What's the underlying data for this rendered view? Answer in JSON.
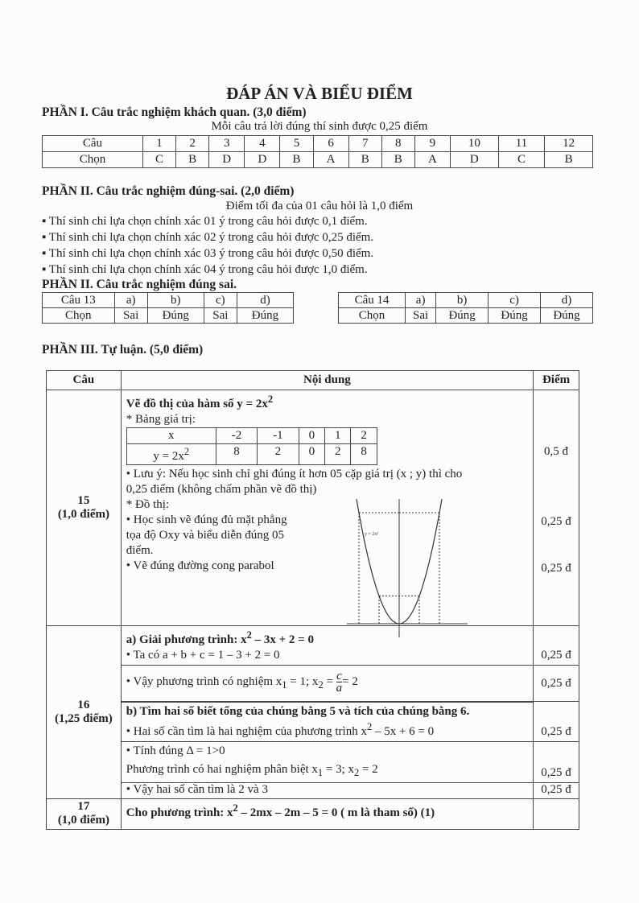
{
  "title": "ĐÁP ÁN VÀ BIỂU ĐIỂM",
  "part1": {
    "heading": "PHẦN I. Câu trắc nghiệm khách quan. (3,0 điểm)",
    "note": "Mỗi câu trả lời đúng thí sinh được 0,25 điểm",
    "row_labels": [
      "Câu",
      "Chọn"
    ],
    "questions": [
      "1",
      "2",
      "3",
      "4",
      "5",
      "6",
      "7",
      "8",
      "9",
      "10",
      "11",
      "12"
    ],
    "answers": [
      "C",
      "B",
      "D",
      "D",
      "B",
      "A",
      "B",
      "B",
      "A",
      "D",
      "C",
      "B"
    ]
  },
  "part2": {
    "heading": "PHẦN II. Câu trắc nghiệm đúng-sai. (2,0 điểm)",
    "note": "Điểm tối đa của 01 câu hỏi là  1,0 điểm",
    "rules": [
      "▪ Thí sinh chỉ lựa chọn chính xác 01 ý trong câu hỏi được 0,1 điểm.",
      "▪ Thí sinh chỉ lựa chọn chính xác 02 ý trong câu hỏi được 0,25 điểm.",
      "▪ Thí sinh chỉ lựa chọn chính xác 03 ý trong câu hỏi được 0,50 điểm.",
      "▪ Thí sinh chỉ lựa chọn chính xác 04 ý trong câu hỏi được 1,0 điểm."
    ],
    "heading2": "PHẦN II. Câu trắc nghiệm đúng sai.",
    "tables": [
      {
        "question": "Câu 13",
        "choose": "Chọn",
        "items": [
          "a)",
          "b)",
          "c)",
          "d)"
        ],
        "answers": [
          "Sai",
          "Đúng",
          "Sai",
          "Đúng"
        ]
      },
      {
        "question": "Câu 14",
        "choose": "Chọn",
        "items": [
          "a)",
          "b)",
          "c)",
          "d)"
        ],
        "answers": [
          "Sai",
          "Đúng",
          "Đúng",
          "Đúng"
        ]
      }
    ]
  },
  "part3": {
    "heading": "PHẦN III. Tự luận. (5,0 điểm)",
    "headers": [
      "Câu",
      "Nội dung",
      "Điểm"
    ],
    "q15": {
      "num": "15",
      "pts": "(1,0 điểm)",
      "title": "Vẽ đồ thị của hàm số y = 2x",
      "table_label": "* Bảng giá trị:",
      "x_label": "x",
      "y_label": "y = 2x",
      "x_values": [
        "-2",
        "-1",
        "0",
        "1",
        "2"
      ],
      "y_values": [
        "8",
        "2",
        "0",
        "2",
        "8"
      ],
      "note1": "• Lưu ý: Nếu học sinh chỉ ghi đúng ít hơn 05 cặp giá trị (x ; y) thì cho",
      "note2": "0,25 điểm (không chấm phần vẽ đồ thị)",
      "graph_label": "* Đồ thị:",
      "b1": "• Học sinh vẽ đúng đủ mặt phẳng tọa độ Oxy và biểu diễn đúng 05 điểm.",
      "b2": "• Vẽ đúng đường cong parabol",
      "graph_fn_label": "y = 2x²",
      "scores": [
        "0,5 đ",
        "0,25 đ",
        "0,25 đ"
      ]
    },
    "q16": {
      "num": "16",
      "pts": "(1,25 điểm)",
      "a_title": "a) Giải phương trình: x",
      "a_title_rest": " – 3x + 2 = 0",
      "a1": "• Ta có a + b + c = 1 – 3 + 2 = 0",
      "a2_pre": "• Vậy phương trình có nghiệm x",
      "a2_mid": " = 1; x",
      "a2_eq": " = ",
      "a2_num": "c",
      "a2_den": "a",
      "a2_end": "= 2",
      "b_title": "b) Tìm hai số biết tổng của chúng bằng 5 và tích của chúng bằng 6.",
      "b1": "• Hai số cần tìm là hai nghiệm của phương trình x",
      "b1_rest": " – 5x + 6 = 0",
      "b2": "• Tính đúng  Δ = 1>0",
      "b3_pre": "Phương trình có hai nghiệm phân biệt x",
      "b3_mid": " = 3; x",
      "b3_end": " = 2",
      "b4": "• Vậy hai số cần tìm là 2 và 3",
      "scores": [
        "0,25 đ",
        "0,25 đ",
        "0,25 đ",
        "0,25 đ",
        "0,25 đ"
      ]
    },
    "q17": {
      "num": "17",
      "pts": "(1,0 điểm)",
      "text_pre": "Cho phương trình:  x",
      "text_rest": " – 2mx – 2m – 5 = 0 ( m là tham số)  (1)"
    }
  }
}
